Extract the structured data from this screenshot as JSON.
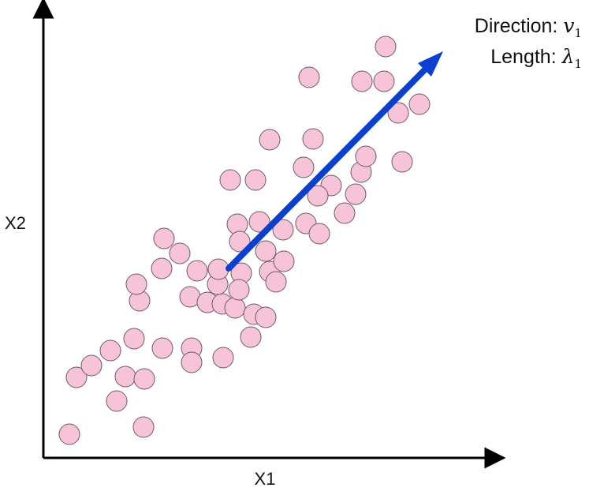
{
  "diagram": {
    "x_axis_label": "X1",
    "y_axis_label": "X2",
    "annotation": {
      "line1_prefix": "Direction: ",
      "line1_var": "v",
      "line1_sub": "1",
      "line2_prefix": "Length: ",
      "line2_var": "λ",
      "line2_sub": "1"
    },
    "colors": {
      "point_fill": "#f7c3d8",
      "point_stroke": "#6e5a63",
      "arrow": "#0a3fd0",
      "axis": "#000000"
    }
  }
}
